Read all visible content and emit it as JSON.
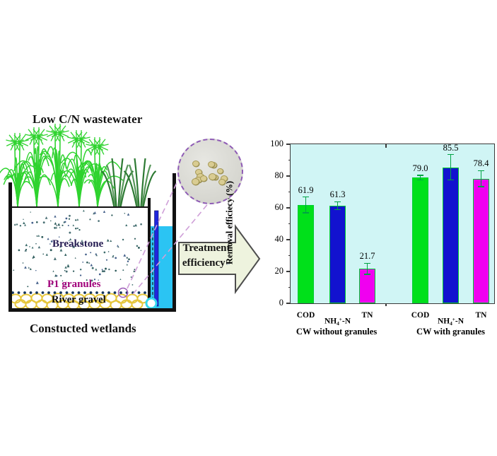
{
  "figure": {
    "wetland": {
      "title": "Low C/N wastewater",
      "caption": "Constucted wetlands",
      "breakstone_label": "Breakstone",
      "granules_label": "P1 granules",
      "gravel_label": "River gravel"
    },
    "arrow": {
      "line1": "Treatment",
      "line2": "efficiency",
      "return_mark": "↵"
    },
    "colors": {
      "plant_green": "#2fd32f",
      "reed_green": "#2d7a33",
      "water_cyan": "#2bc4f3",
      "pipe_blue": "#2026dd",
      "gravel_yellow": "#e6c63c",
      "dot_navy": "#15355e",
      "magnifier_purple": "#9b59b6",
      "cone_line_purple": "#cf9fd8",
      "arrow_fill": "#eef3de",
      "arrow_border": "#4d4d4d"
    }
  },
  "chart_data": {
    "type": "bar",
    "title": "",
    "xlabel": "",
    "ylabel": "Removal efficiecy (%)",
    "ylim": [
      0,
      100
    ],
    "yticks": [
      0,
      20,
      40,
      60,
      80,
      100
    ],
    "categories": [
      "COD",
      "NH4+-N",
      "TN"
    ],
    "groups": [
      {
        "label": "CW without granules",
        "values": [
          "61.9",
          "61.3",
          "21.7"
        ],
        "errors": [
          5,
          2.5,
          3.5
        ]
      },
      {
        "label": "CW with granules",
        "values": [
          "79.0",
          "85.5",
          "78.4"
        ],
        "errors": [
          1.5,
          8,
          5
        ]
      }
    ],
    "bar_colors": [
      "#00e01a",
      "#1212cf",
      "#f000f0"
    ],
    "bar_edge_color": "#00cc33",
    "error_bar_color": "#00a344",
    "plot_background": "#d0f5f5",
    "grid": false,
    "legend": "none"
  }
}
